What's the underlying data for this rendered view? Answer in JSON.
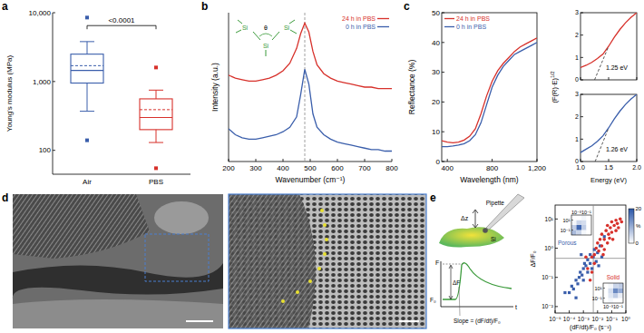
{
  "chart_data": [
    {
      "type": "box",
      "title": "a",
      "ylabel": "Young's modulus (MPa)",
      "categories": [
        "Air",
        "PBS"
      ],
      "colors": [
        "#3a5eab",
        "#d7312b"
      ],
      "log": "y",
      "ylim": [
        45,
        10000
      ],
      "yticks": [
        100,
        {
          "value": 1000,
          "label": "1,000"
        },
        {
          "value": 10000,
          "label": "10,000"
        }
      ],
      "boxes": [
        {
          "min": 370,
          "q1": 950,
          "median": 1450,
          "q3": 2500,
          "max": 3800,
          "mean": 1700,
          "outliers": [
            8500,
            140
          ]
        },
        {
          "min": 130,
          "q1": 200,
          "median": 300,
          "q3": 560,
          "max": 750,
          "mean": 390,
          "outliers": [
            1600,
            55
          ]
        }
      ],
      "annotations": [
        {
          "text": "<0.0001",
          "from": 0,
          "to": 1,
          "y": 6500
        }
      ]
    },
    {
      "type": "line",
      "title": "b",
      "xlabel": "Wavenumber (cm⁻¹)",
      "ylabel": "Intensity (a.u.)",
      "x": [
        200,
        225,
        250,
        275,
        300,
        325,
        350,
        375,
        400,
        425,
        450,
        465,
        480,
        495,
        510,
        525,
        550,
        575,
        600,
        625,
        650,
        675,
        700,
        725,
        750,
        775,
        800
      ],
      "xlim": [
        200,
        800
      ],
      "xticks": [
        200,
        300,
        400,
        500,
        600,
        700,
        800
      ],
      "ylim": [
        0,
        10
      ],
      "tick_labels": "x",
      "legend": "upper right",
      "series": [
        {
          "name": "24 h in PBS",
          "color": "#d7312b",
          "values": [
            5.8,
            5.6,
            5.5,
            5.4,
            5.4,
            5.5,
            5.6,
            5.8,
            6.1,
            6.6,
            7.6,
            8.6,
            9.3,
            8.7,
            7.4,
            6.5,
            5.9,
            5.6,
            5.4,
            5.3,
            5.2,
            5.1,
            5.0,
            5.0,
            4.9,
            4.9,
            4.9
          ]
        },
        {
          "name": "0 h in PBS",
          "color": "#3a5eab",
          "values": [
            2.2,
            1.8,
            1.6,
            1.5,
            1.5,
            1.6,
            1.7,
            1.8,
            2.0,
            2.3,
            3.0,
            4.5,
            6.2,
            5.2,
            3.2,
            2.3,
            1.8,
            1.5,
            1.3,
            1.2,
            1.1,
            1.0,
            0.9,
            0.8,
            0.8,
            0.7,
            0.7
          ]
        }
      ],
      "vlines": [
        480
      ],
      "annotations": [
        "Si",
        "Si",
        "Si",
        "θ"
      ]
    },
    {
      "type": "line",
      "title": "c",
      "xlabel": "Wavelength (nm)",
      "ylabel": "Reflectance (%)",
      "x": [
        350,
        400,
        450,
        500,
        550,
        600,
        650,
        700,
        750,
        800,
        850,
        900,
        950,
        1000,
        1050,
        1100,
        1150,
        1200
      ],
      "xlim": [
        350,
        1200
      ],
      "xticks": [
        400,
        800,
        {
          "value": 1200,
          "label": "1,200"
        }
      ],
      "ylim": [
        0,
        50
      ],
      "yticks": [
        0,
        10,
        20,
        30,
        40,
        50
      ],
      "legend": "upper left",
      "series": [
        {
          "name": "24 h in PBS",
          "color": "#d7312b",
          "values": [
            7,
            6.5,
            6.3,
            6.5,
            7.2,
            8.5,
            11,
            16,
            22,
            27,
            30.5,
            33,
            35,
            37,
            38.5,
            39.5,
            40.5,
            41.5
          ]
        },
        {
          "name": "0 h in PBS",
          "color": "#3a5eab",
          "values": [
            5,
            5,
            5.2,
            5.5,
            6,
            7,
            9,
            13,
            19,
            25,
            29,
            32,
            34,
            36,
            37,
            38,
            39,
            40
          ]
        }
      ]
    },
    {
      "type": "line",
      "ylabel": "(F(R)·E)",
      "ylabel_sup": "1/2",
      "x": [
        1,
        1.1,
        1.2,
        1.3,
        1.4,
        1.5,
        1.6,
        1.7,
        1.8,
        1.9,
        2
      ],
      "xlim": [
        1,
        2
      ],
      "xticks": [
        {
          "value": 1,
          "label": "1.0"
        },
        1.5,
        {
          "value": 2,
          "label": "2.0"
        }
      ],
      "ylim": [
        0,
        3
      ],
      "yticks": [
        0,
        1,
        2,
        3
      ],
      "tick_labels": "y",
      "series": [
        {
          "color": "#d7312b",
          "values": [
            0.55,
            0.65,
            0.78,
            0.95,
            1.15,
            1.5,
            1.9,
            2.25,
            2.55,
            2.8,
            3.0
          ]
        },
        {
          "color": "#444444",
          "line_style": "dashed",
          "x": [
            1.25,
            1.5
          ],
          "values": [
            0,
            1.5
          ]
        }
      ],
      "annotations": [
        {
          "text": "1.25 eV",
          "x": 1.45,
          "y": 0.45
        }
      ]
    },
    {
      "type": "line",
      "xlabel": "Energy (eV)",
      "x": [
        1,
        1.1,
        1.2,
        1.3,
        1.4,
        1.5,
        1.6,
        1.7,
        1.8,
        1.9,
        2
      ],
      "xlim": [
        1,
        2
      ],
      "xticks": [
        {
          "value": 1,
          "label": "1.0"
        },
        1.5,
        {
          "value": 2,
          "label": "2.0"
        }
      ],
      "ylim": [
        0,
        3
      ],
      "yticks": [
        0,
        1,
        2,
        3
      ],
      "series": [
        {
          "color": "#3a5eab",
          "values": [
            0.4,
            0.55,
            0.7,
            0.9,
            1.15,
            1.5,
            1.9,
            2.25,
            2.55,
            2.8,
            3.0
          ]
        },
        {
          "color": "#444444",
          "line_style": "dashed",
          "x": [
            1.26,
            1.5
          ],
          "values": [
            0,
            1.5
          ]
        }
      ],
      "annotations": [
        {
          "text": "1.26 eV",
          "x": 1.45,
          "y": 0.45
        }
      ]
    },
    {
      "type": "image",
      "title": "d"
    },
    {
      "type": "diagram",
      "title": "e",
      "labels": {
        "delta_z": "Δz",
        "pipette": "Pipette",
        "si": "Si",
        "f": "F",
        "delta_f": "ΔF",
        "f0": "F₀",
        "t": "t",
        "slope": "Slope = (dF/dt)/F₀"
      }
    },
    {
      "type": "scatter",
      "log": true,
      "xlabel": "(dF/dt)/F₀ (s⁻¹)",
      "ylabel": "ΔF/F₀",
      "xlim": [
        1e-05,
        1
      ],
      "xticks": [
        {
          "value": 1e-05,
          "label": "10⁻⁵"
        },
        {
          "value": 0.0001,
          "label": "10⁻⁴"
        },
        {
          "value": 0.001,
          "label": "10⁻³"
        },
        {
          "value": 0.01,
          "label": "10⁻²"
        },
        {
          "value": 0.1,
          "label": "10⁻¹"
        },
        {
          "value": 1,
          "label": "10⁰"
        }
      ],
      "ylim": [
        0.006,
        30
      ],
      "yticks": [
        {
          "value": 0.01,
          "label": "10⁻²"
        },
        {
          "value": 0.1,
          "label": "10⁻¹"
        },
        {
          "value": 1,
          "label": "10⁰"
        },
        {
          "value": 10,
          "label": "10¹"
        }
      ],
      "hlines": [
        0.45
      ],
      "vlines": [
        0.005
      ],
      "series": [
        {
          "color": "#3a5eab",
          "marker": "square",
          "x": [
            0.0001,
            0.00015,
            0.0002,
            0.0003,
            0.0004,
            0.0005,
            0.0006,
            0.0008,
            0.001,
            0.001,
            0.0012,
            0.0015,
            0.002,
            0.002,
            0.003,
            0.003,
            0.004,
            0.005,
            0.006,
            0.008,
            0.01,
            0.012,
            0.015,
            0.02,
            0.0003,
            5e-05,
            0.03,
            0.0007
          ],
          "values": [
            0.03,
            0.05,
            0.04,
            0.08,
            0.06,
            0.1,
            0.15,
            0.12,
            0.2,
            0.08,
            0.3,
            0.25,
            0.15,
            0.4,
            0.3,
            0.6,
            0.2,
            0.5,
            0.9,
            0.35,
            0.7,
            0.25,
            1.2,
            0.5,
            0.02,
            0.03,
            2.5,
            0.6
          ]
        },
        {
          "color": "#d7312b",
          "marker": "circle",
          "x": [
            0.002,
            0.003,
            0.004,
            0.006,
            0.008,
            0.01,
            0.012,
            0.015,
            0.02,
            0.02,
            0.025,
            0.03,
            0.04,
            0.05,
            0.05,
            0.06,
            0.07,
            0.08,
            0.1,
            0.1,
            0.12,
            0.15,
            0.2,
            0.2,
            0.25,
            0.3,
            0.4,
            0.5,
            0.006,
            0.004,
            0.03,
            0.0015
          ],
          "values": [
            0.2,
            0.08,
            0.5,
            0.3,
            1.0,
            1.5,
            0.8,
            2.0,
            1.2,
            3.0,
            0.6,
            2.0,
            4.0,
            1.5,
            6.0,
            3.0,
            2.2,
            5.0,
            8.0,
            3.5,
            2.0,
            6.0,
            4.0,
            9.0,
            7.0,
            5.0,
            10.0,
            8.0,
            0.6,
            0.15,
            0.9,
            0.5
          ]
        }
      ],
      "insets": [
        {
          "title": "Porous",
          "color": "#3a5eab",
          "xlim": [
            0.0001,
            1
          ],
          "ylim": [
            0.01,
            100
          ],
          "xticks": [
            {
              "value": 0.001,
              "label": "10⁻³"
            },
            {
              "value": 0.1,
              "label": "10⁻¹"
            }
          ],
          "yticks": [
            {
              "value": 0.1,
              "label": "10⁻¹"
            },
            {
              "value": 10,
              "label": "10¹"
            }
          ],
          "cells": [
            [
              8,
              5,
              1,
              0
            ],
            [
              6,
              18,
              6,
              0
            ],
            [
              1,
              5,
              4,
              0
            ],
            [
              0,
              0,
              1,
              0
            ]
          ]
        },
        {
          "title": "Solid",
          "color": "#d7312b",
          "xlim": [
            0.0001,
            1
          ],
          "ylim": [
            0.01,
            100
          ],
          "xticks": [
            {
              "value": 0.001,
              "label": "10⁻³"
            },
            {
              "value": 0.1,
              "label": "10⁻¹"
            }
          ],
          "yticks": [
            {
              "value": 0.1,
              "label": "10⁻¹"
            },
            {
              "value": 10,
              "label": "10¹"
            }
          ],
          "cells": [
            [
              0,
              1,
              0,
              0
            ],
            [
              0,
              3,
              6,
              2
            ],
            [
              0,
              4,
              14,
              10
            ],
            [
              0,
              1,
              5,
              6
            ]
          ]
        }
      ],
      "colorbar": {
        "range": [
          0,
          20
        ],
        "ticks": [
          0,
          20
        ],
        "label": "%",
        "color": "#2a56a8"
      }
    }
  ]
}
